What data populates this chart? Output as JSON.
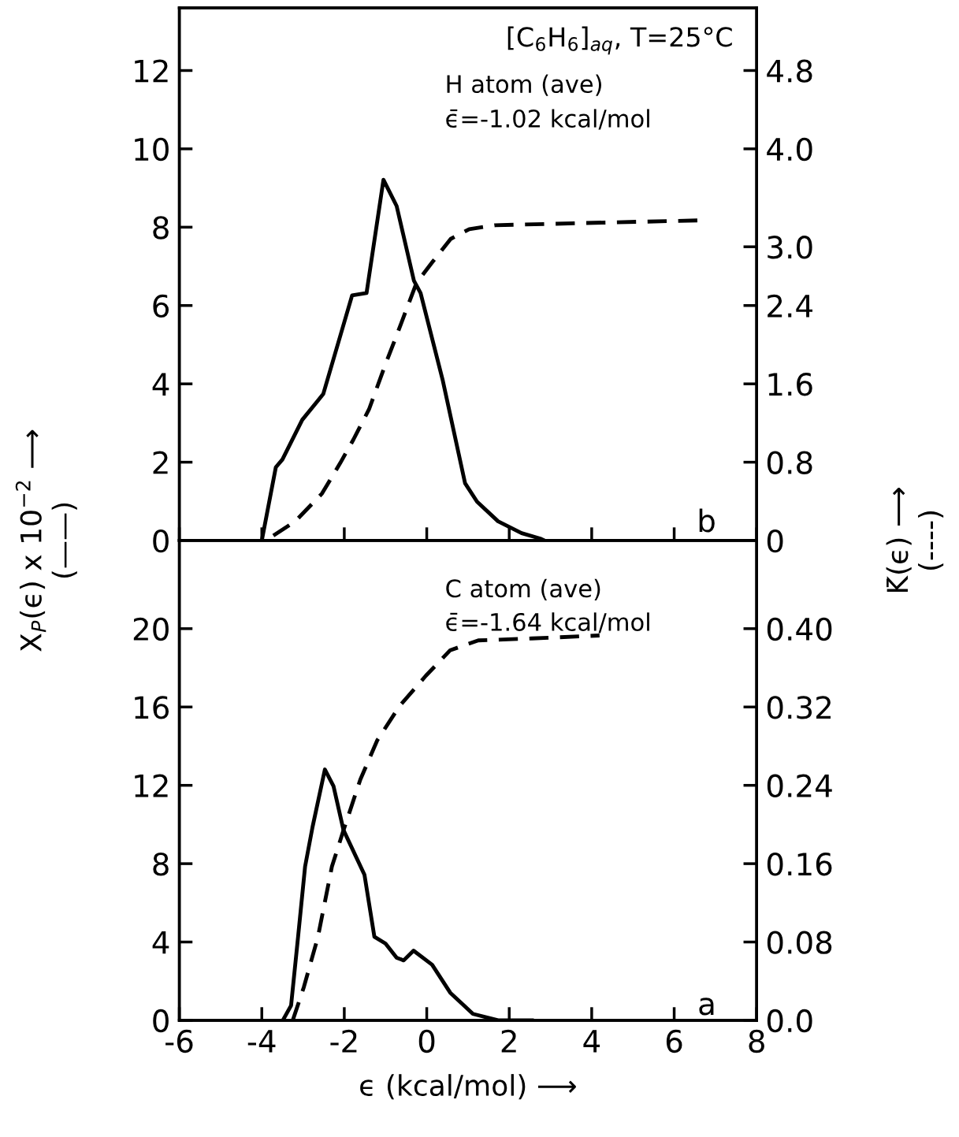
{
  "chart_data": [
    {
      "type": "line",
      "annotations": [
        "[C$_{6}$H$_{6}$]$_{aq}$, T=25°C",
        "H atom (ave)",
        "ϵ̄=-1.02 kcal/mol",
        "b"
      ],
      "ylabel": "X$_{P}$(ϵ) x 10$^{−2}$ ⟶\n(——)",
      "y2label": "K̄(ϵ) ⟶\n(----)",
      "xlim": [
        -6,
        8
      ],
      "xticks": [
        {
          "value": -6,
          "label": null
        },
        {
          "value": -4,
          "label": null
        },
        {
          "value": -2,
          "label": null
        },
        {
          "value": 0,
          "label": null
        },
        {
          "value": 2,
          "label": null
        },
        {
          "value": 4,
          "label": null
        },
        {
          "value": 6,
          "label": null
        },
        {
          "value": 8,
          "label": null
        }
      ],
      "ylim": [
        0,
        13.6
      ],
      "yticks": [
        0,
        2,
        4,
        6,
        8,
        10,
        12
      ],
      "y2lim": [
        0,
        5.44
      ],
      "y2ticks": [
        0,
        0.8,
        1.6,
        2.4,
        {
          "value": 3,
          "label": "3.0"
        },
        {
          "value": 4,
          "label": "4.0"
        },
        4.8
      ],
      "tick_labels": "y",
      "grid": false,
      "legend": false,
      "series": [
        {
          "color": "#000000",
          "line_style": "solid",
          "x": [
            -4.0,
            -3.66,
            -3.5,
            -3.02,
            -2.51,
            -1.81,
            -1.46,
            -1.05,
            -0.73,
            -0.31,
            -0.15,
            0.39,
            0.93,
            1.22,
            1.73,
            2.3,
            2.75,
            2.85
          ],
          "values": [
            0,
            1.87,
            2.07,
            3.08,
            3.74,
            6.26,
            6.32,
            9.21,
            8.54,
            6.63,
            6.32,
            4.08,
            1.46,
            0.99,
            0.49,
            0.19,
            0.05,
            0
          ]
        },
        {
          "color": "#000000",
          "line_style": "dashed",
          "axis": "y2",
          "x": [
            -3.72,
            -3.18,
            -2.54,
            -2.1,
            -1.78,
            -1.4,
            -1.01,
            -0.69,
            -0.25,
            0.13,
            0.58,
            1.03,
            1.66,
            3.58,
            6.67
          ],
          "values": [
            0.05,
            0.2,
            0.48,
            0.79,
            1.03,
            1.34,
            1.79,
            2.14,
            2.63,
            2.84,
            3.08,
            3.18,
            3.22,
            3.24,
            3.27
          ]
        }
      ]
    },
    {
      "type": "line",
      "annotations": [
        "C atom (ave)",
        "ϵ̄=-1.64 kcal/mol",
        "a"
      ],
      "xlabel": "ϵ (kcal/mol) ⟶",
      "xlim": [
        -6,
        8
      ],
      "xticks": [
        -6,
        -4,
        -2,
        0,
        2,
        4,
        6,
        8
      ],
      "ylim": [
        0,
        24.5
      ],
      "yticks": [
        0,
        4,
        8,
        12,
        16,
        20
      ],
      "y2lim": [
        0,
        0.49
      ],
      "y2ticks": [
        {
          "value": 0,
          "label": "0.0"
        },
        0.08,
        0.16,
        0.24,
        0.32,
        {
          "value": 0.4,
          "label": "0.40"
        }
      ],
      "grid": false,
      "legend": false,
      "series": [
        {
          "color": "#000000",
          "line_style": "solid",
          "x": [
            -3.49,
            -3.29,
            -3.12,
            -2.95,
            -2.77,
            -2.47,
            -2.26,
            -2.02,
            -1.51,
            -1.27,
            -1.0,
            -0.73,
            -0.56,
            -0.32,
            0.13,
            0.57,
            1.12,
            1.73,
            2.55
          ],
          "values": [
            0,
            0.76,
            4.27,
            7.86,
            9.87,
            12.81,
            11.95,
            9.72,
            7.43,
            4.27,
            3.92,
            3.2,
            3.06,
            3.56,
            2.84,
            1.41,
            0.33,
            0,
            0
          ]
        },
        {
          "color": "#000000",
          "line_style": "dashed",
          "axis": "y2",
          "x": [
            -3.25,
            -2.98,
            -2.64,
            -2.3,
            -2.02,
            -1.61,
            -1.2,
            -0.66,
            -0.02,
            0.57,
            1.25,
            2.55,
            4.19
          ],
          "values": [
            0,
            0.034,
            0.085,
            0.157,
            0.194,
            0.246,
            0.286,
            0.321,
            0.352,
            0.378,
            0.388,
            0.39,
            0.393
          ]
        }
      ]
    }
  ]
}
